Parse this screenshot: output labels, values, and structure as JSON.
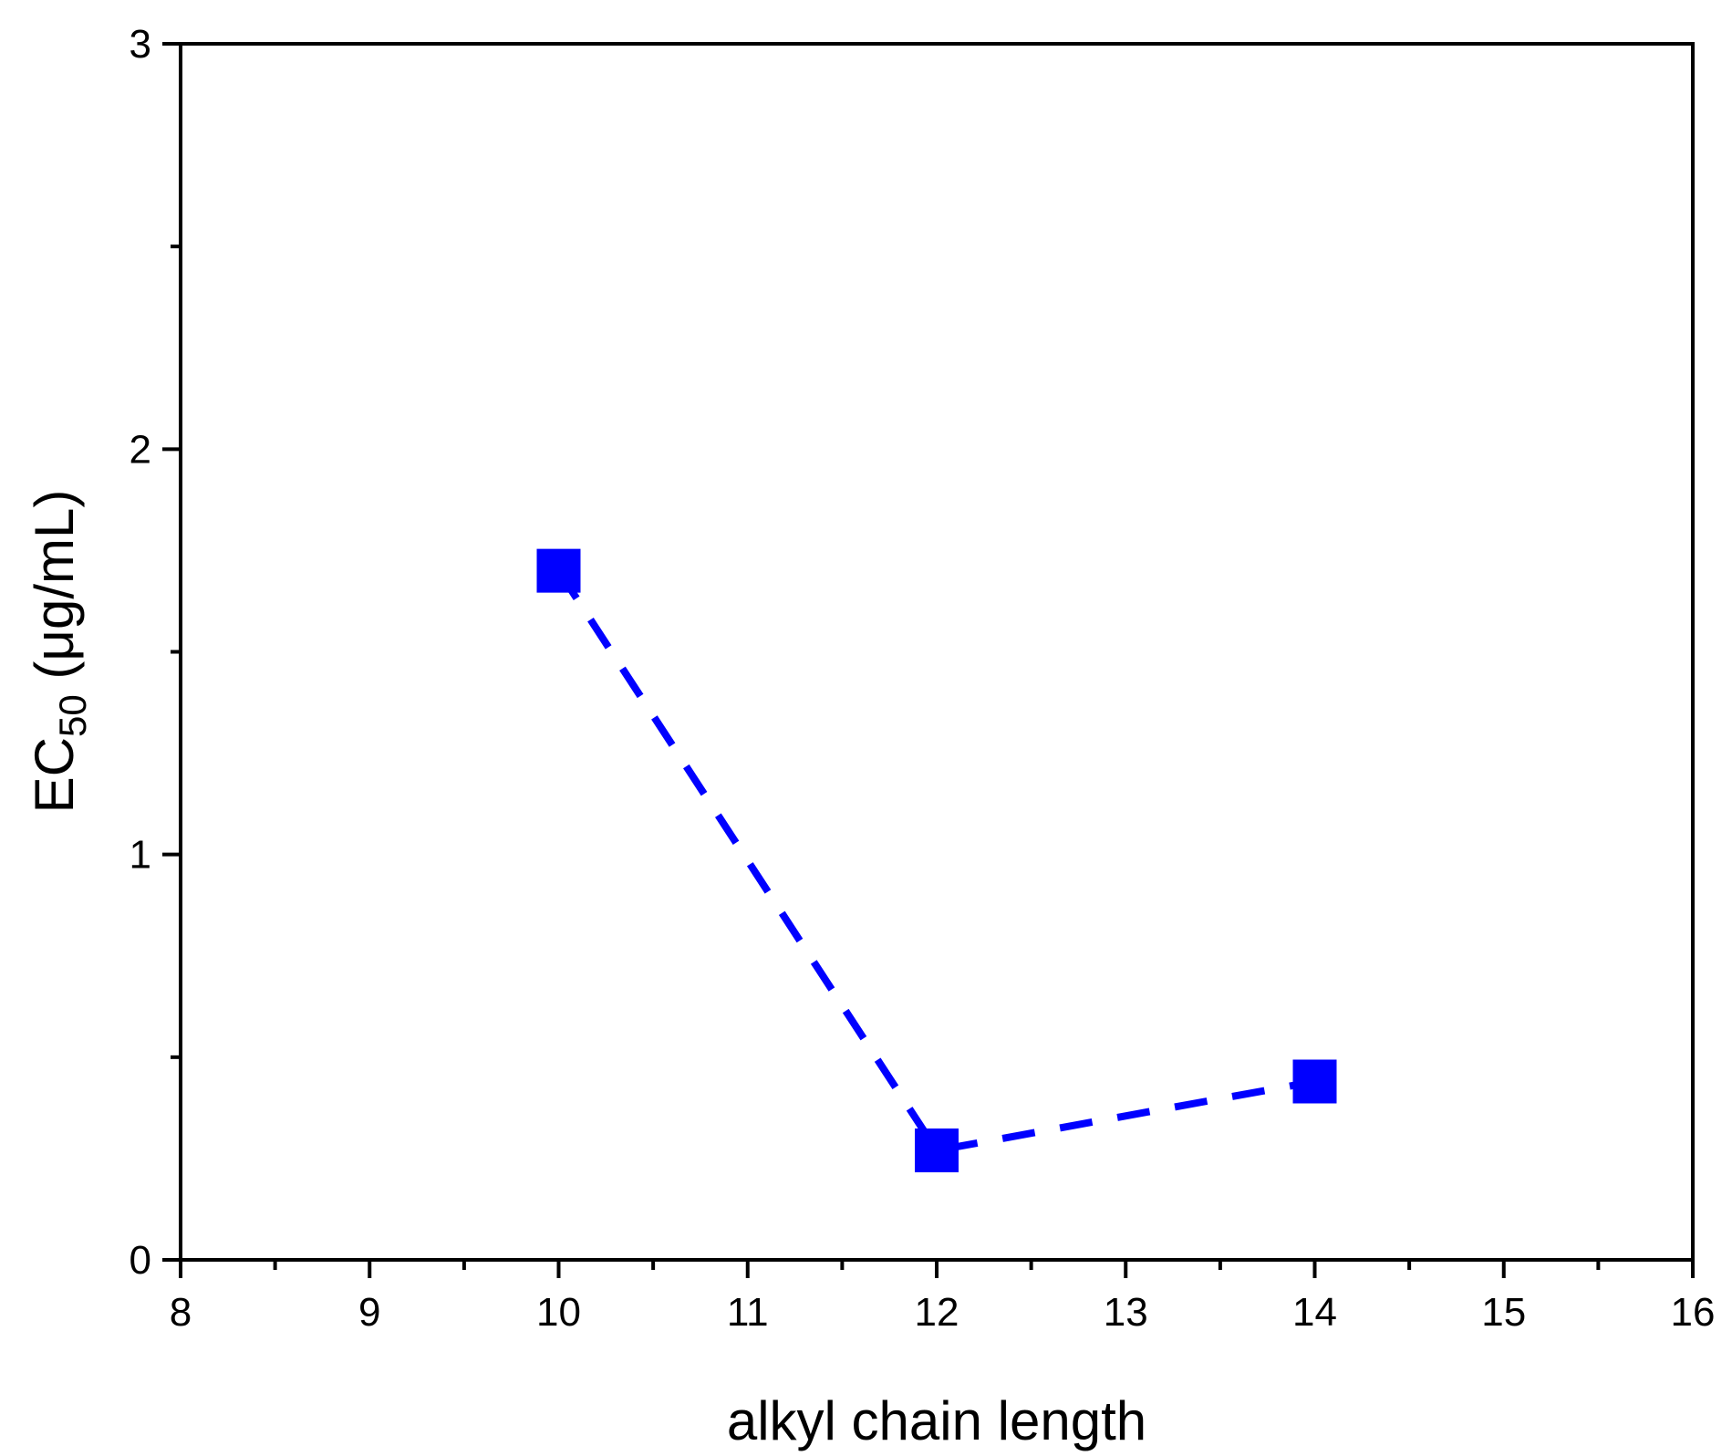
{
  "chart_data": {
    "type": "line",
    "xlabel": "alkyl chain length",
    "ylabel": {
      "main": "EC",
      "subscript": "50",
      "unit": " (μg/mL)"
    },
    "xlim": [
      8,
      16
    ],
    "ylim": [
      0,
      3
    ],
    "x_ticks": [
      "8",
      "9",
      "10",
      "11",
      "12",
      "13",
      "14",
      "15",
      "16"
    ],
    "y_ticks": [
      "0",
      "1",
      "2",
      "3"
    ],
    "grid": false,
    "series": [
      {
        "x": [
          10,
          12,
          14
        ],
        "y": [
          1.7,
          0.27,
          0.44
        ],
        "color": "#0000ff",
        "marker": "square",
        "line_style": "dashed"
      }
    ]
  }
}
